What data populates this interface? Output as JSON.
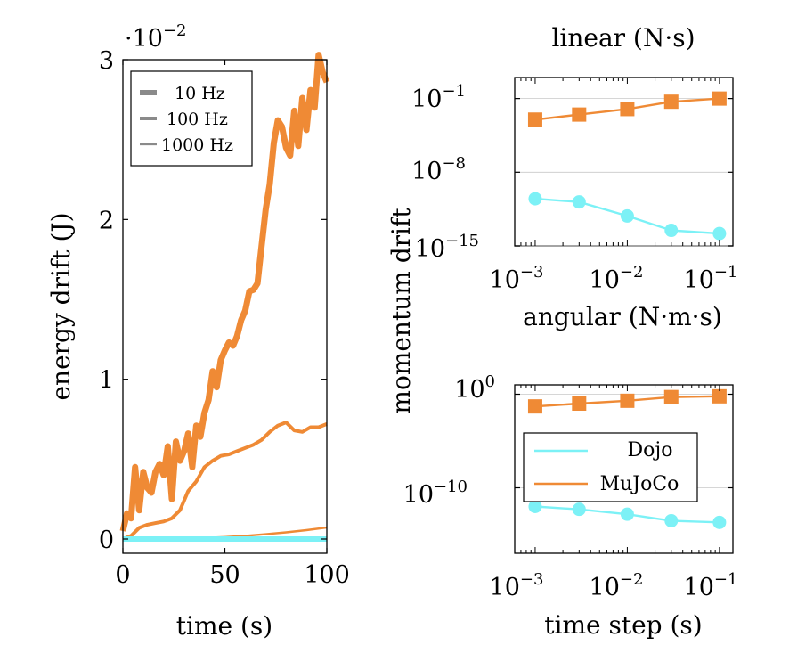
{
  "colors": {
    "dojo": "#7cf1f6",
    "mujoco": "#ef8a35",
    "legend_gray": "#8a8a8a"
  },
  "chart_data": [
    {
      "type": "line",
      "xlabel": "time (s)",
      "ylabel": "energy drift (J)",
      "scale_label": "·10",
      "scale_exp": "−2",
      "xlim": [
        0,
        100
      ],
      "ylim": [
        0,
        0.03
      ],
      "x_ticks": [
        0,
        50,
        100
      ],
      "x_tick_labels": [
        "0",
        "50",
        "100"
      ],
      "y_ticks": [
        0,
        0.01,
        0.02,
        0.03
      ],
      "y_tick_labels": [
        "0",
        "1",
        "2",
        "3"
      ],
      "legend_position": "top-left",
      "legend": [
        "10 Hz",
        "100 Hz",
        "1000 Hz"
      ],
      "series": [
        {
          "name": "10 Hz",
          "x": [
            0,
            2,
            4,
            6,
            8,
            10,
            12,
            14,
            16,
            18,
            20,
            22,
            24,
            26,
            28,
            30,
            32,
            34,
            36,
            38,
            40,
            42,
            44,
            46,
            48,
            50,
            52,
            54,
            56,
            58,
            60,
            62,
            64,
            66,
            68,
            70,
            72,
            74,
            76,
            78,
            80,
            82,
            84,
            86,
            88,
            90,
            92,
            94,
            96,
            98,
            100
          ],
          "y": [
            0.0005,
            0.0016,
            0.0013,
            0.0045,
            0.0018,
            0.0042,
            0.0032,
            0.0029,
            0.0042,
            0.0047,
            0.004,
            0.0058,
            0.0025,
            0.0061,
            0.0049,
            0.0055,
            0.0066,
            0.0045,
            0.0071,
            0.0064,
            0.0079,
            0.0087,
            0.0105,
            0.0095,
            0.0112,
            0.0118,
            0.0123,
            0.0121,
            0.0127,
            0.0137,
            0.0143,
            0.0155,
            0.0156,
            0.016,
            0.0183,
            0.0206,
            0.0222,
            0.0248,
            0.0262,
            0.0258,
            0.0245,
            0.024,
            0.0268,
            0.0246,
            0.0276,
            0.0256,
            0.0281,
            0.027,
            0.0303,
            0.0292,
            0.0286
          ]
        },
        {
          "name": "100 Hz",
          "x": [
            0,
            4,
            8,
            12,
            16,
            20,
            24,
            28,
            32,
            36,
            40,
            44,
            48,
            52,
            56,
            60,
            64,
            68,
            72,
            76,
            80,
            84,
            88,
            92,
            96,
            100
          ],
          "y": [
            0.0,
            0.0002,
            0.0007,
            0.0009,
            0.001,
            0.0011,
            0.0013,
            0.0018,
            0.003,
            0.0036,
            0.0045,
            0.0049,
            0.0052,
            0.0053,
            0.0055,
            0.0057,
            0.0059,
            0.0062,
            0.0067,
            0.0071,
            0.0073,
            0.0068,
            0.0067,
            0.007,
            0.007,
            0.0072
          ]
        },
        {
          "name": "1000 Hz",
          "x": [
            0,
            10,
            20,
            30,
            40,
            50,
            60,
            70,
            80,
            90,
            100
          ],
          "y": [
            0.0,
            1e-05,
            2e-05,
            3e-05,
            7e-05,
            0.00012,
            0.0002,
            0.0003,
            0.00042,
            0.00056,
            0.00072
          ]
        },
        {
          "name": "Dojo",
          "x": [
            0,
            100
          ],
          "y": [
            0.0,
            0.0
          ]
        }
      ]
    },
    {
      "type": "line",
      "title": "linear (N·s)",
      "ylabel": "momentum drift",
      "xscale": "log",
      "yscale": "log",
      "xlim": [
        0.0006,
        0.14
      ],
      "ylim": [
        1e-15,
        10.0
      ],
      "x_tick_labels": [
        "10",
        "10",
        "10"
      ],
      "x_tick_exps": [
        "−3",
        "−2",
        "−1"
      ],
      "y_tick_labels": [
        "10",
        "10",
        "10"
      ],
      "y_tick_exps": [
        "−1",
        "−8",
        "−15"
      ],
      "series": [
        {
          "name": "Dojo",
          "x": [
            0.001,
            0.003,
            0.01,
            0.03,
            0.1
          ],
          "y": [
            3e-11,
            1.5e-11,
            7e-13,
            3e-14,
            1.5e-14
          ]
        },
        {
          "name": "MuJoCo",
          "x": [
            0.001,
            0.003,
            0.01,
            0.03,
            0.1
          ],
          "y": [
            0.001,
            0.003,
            0.01,
            0.05,
            0.1
          ]
        }
      ]
    },
    {
      "type": "line",
      "title": "angular (N·m·s)",
      "xlabel": "time step (s)",
      "xscale": "log",
      "yscale": "log",
      "xlim": [
        0.0006,
        0.14
      ],
      "ylim": [
        1e-17,
        10.0
      ],
      "x_tick_labels": [
        "10",
        "10",
        "10"
      ],
      "x_tick_exps": [
        "−3",
        "−2",
        "−1"
      ],
      "y_tick_labels": [
        "10",
        "10"
      ],
      "y_tick_exps": [
        "0",
        "−10"
      ],
      "legend_position": "center-left",
      "legend": [
        "Dojo",
        "MuJoCo"
      ],
      "series": [
        {
          "name": "Dojo",
          "x": [
            0.001,
            0.003,
            0.01,
            0.03,
            0.1
          ],
          "y": [
            1e-12,
            5e-13,
            1.5e-13,
            3e-14,
            2e-14
          ]
        },
        {
          "name": "MuJoCo",
          "x": [
            0.001,
            0.003,
            0.01,
            0.03,
            0.1
          ],
          "y": [
            0.05,
            0.1,
            0.2,
            0.5,
            0.6
          ]
        }
      ]
    }
  ]
}
